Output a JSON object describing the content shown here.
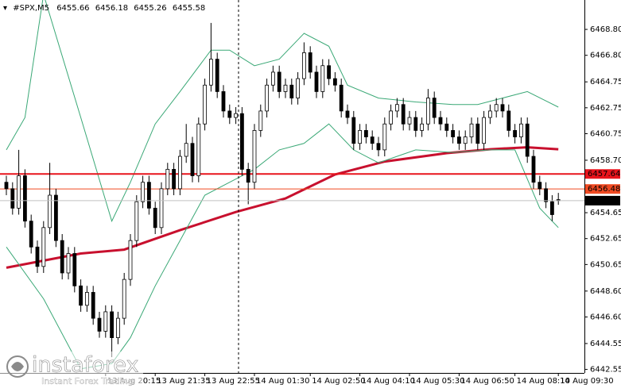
{
  "chart_data": {
    "type": "candlestick",
    "title": "#SPX,M5",
    "categories": [
      null,
      null,
      null,
      null,
      null,
      null,
      null,
      null,
      null,
      null,
      null,
      null,
      null,
      null,
      null,
      null,
      "13 Aug 20:15",
      null,
      null,
      null,
      null,
      null,
      null,
      null,
      "13 Aug 21:35",
      null,
      null,
      null,
      null,
      null,
      null,
      null,
      "13 Aug 22:55",
      null,
      null,
      null,
      null,
      null,
      null,
      null,
      "14 Aug 01:30",
      null,
      null,
      null,
      null,
      null,
      null,
      null,
      null,
      "14 Aug 02:50",
      null,
      null,
      null,
      null,
      null,
      null,
      null,
      "14 Aug 04:10",
      null,
      null,
      null,
      null,
      null,
      null,
      null,
      "14 Aug 05:30",
      null,
      null,
      null,
      null,
      null,
      null,
      null,
      "14 Aug 06:50",
      null,
      null,
      null,
      null,
      null,
      null,
      null,
      null,
      "14 Aug 08:10",
      null,
      null,
      null,
      null,
      null,
      null,
      "14 Aug 09:30"
    ],
    "open": [
      6457.0,
      6456.5,
      6455.0,
      6457.5,
      6454.0,
      6452.0,
      6450.5,
      6453.5,
      6456.0,
      6452.5,
      6450.0,
      6451.5,
      6449.0,
      6447.5,
      6448.5,
      6446.5,
      6445.5,
      6447.0,
      6445.0,
      6446.5,
      6449.5,
      6452.5,
      6455.5,
      6457.0,
      6455.0,
      6453.5,
      6456.5,
      6458.0,
      6456.5,
      6459.0,
      6460.0,
      6457.5,
      6461.5,
      6464.5,
      6466.5,
      6464.0,
      6462.5,
      6462.0,
      6462.3,
      6458.0,
      6457.0,
      6461.0,
      6462.5,
      6464.5,
      6465.5,
      6464.0,
      6464.5,
      6463.5,
      6465.0,
      6467.0,
      6465.5,
      6464.0,
      6466.0,
      6465.0,
      6464.5,
      6462.5,
      6462.0,
      6460.0,
      6461.0,
      6460.5,
      6460.0,
      6459.5,
      6461.5,
      6462.5,
      6463.0,
      6461.5,
      6462.0,
      6461.0,
      6461.5,
      6463.5,
      6462.0,
      6461.5,
      6461.0,
      6460.5,
      6460.0,
      6460.5,
      6461.5,
      6460.0,
      6462.0,
      6462.5,
      6463.0,
      6462.5,
      6461.0,
      6460.5,
      6461.5,
      6459.0,
      6457.0,
      6456.5,
      6455.5,
      6455.66
    ],
    "high": [
      6457.5,
      6457.0,
      6459.5,
      6458.0,
      6454.5,
      6452.5,
      6454.0,
      6458.5,
      6456.5,
      6453.0,
      6452.0,
      6452.0,
      6449.5,
      6449.0,
      6449.0,
      6447.0,
      6447.5,
      6447.5,
      6447.0,
      6450.0,
      6453.0,
      6456.0,
      6457.5,
      6457.5,
      6455.5,
      6457.0,
      6458.5,
      6458.5,
      6459.5,
      6461.5,
      6460.5,
      6462.0,
      6465.0,
      6469.3,
      6467.0,
      6464.5,
      6463.0,
      6462.8,
      6462.8,
      6458.5,
      6461.5,
      6463.0,
      6465.0,
      6466.0,
      6466.0,
      6465.0,
      6465.0,
      6465.5,
      6467.8,
      6467.5,
      6466.0,
      6466.5,
      6466.5,
      6465.5,
      6465.0,
      6463.0,
      6462.5,
      6461.5,
      6461.5,
      6461.0,
      6460.5,
      6462.0,
      6463.0,
      6463.5,
      6463.5,
      6462.5,
      6462.5,
      6462.0,
      6464.2,
      6464.0,
      6462.5,
      6462.0,
      6461.5,
      6461.0,
      6461.0,
      6462.0,
      6462.0,
      6462.5,
      6463.0,
      6463.5,
      6463.5,
      6463.0,
      6461.5,
      6462.0,
      6462.0,
      6459.5,
      6457.5,
      6457.0,
      6456.0,
      6456.18
    ],
    "low": [
      6456.0,
      6454.5,
      6454.5,
      6453.5,
      6451.5,
      6450.0,
      6450.0,
      6453.0,
      6452.0,
      6449.5,
      6449.5,
      6448.5,
      6447.0,
      6447.0,
      6446.0,
      6445.0,
      6445.0,
      6443.5,
      6444.5,
      6446.0,
      6449.0,
      6452.0,
      6455.0,
      6454.5,
      6453.0,
      6453.0,
      6456.0,
      6456.0,
      6456.0,
      6458.5,
      6457.0,
      6457.0,
      6461.0,
      6464.0,
      6463.5,
      6462.0,
      6461.5,
      6461.5,
      6457.5,
      6455.3,
      6456.5,
      6460.5,
      6462.0,
      6464.0,
      6463.5,
      6463.5,
      6463.0,
      6463.0,
      6464.5,
      6465.0,
      6463.5,
      6463.5,
      6464.5,
      6464.0,
      6462.0,
      6461.5,
      6459.5,
      6459.5,
      6460.0,
      6459.5,
      6459.0,
      6459.0,
      6461.0,
      6462.0,
      6461.0,
      6461.0,
      6460.5,
      6460.5,
      6461.0,
      6461.5,
      6461.0,
      6460.5,
      6460.0,
      6459.5,
      6459.5,
      6460.0,
      6459.5,
      6459.5,
      6461.5,
      6462.0,
      6462.0,
      6460.5,
      6460.0,
      6460.0,
      6458.5,
      6456.5,
      6456.0,
      6455.0,
      6454.0,
      6455.26
    ],
    "close": [
      6456.5,
      6455.0,
      6457.5,
      6454.0,
      6452.0,
      6450.5,
      6453.5,
      6456.0,
      6452.5,
      6450.0,
      6451.5,
      6449.0,
      6447.5,
      6448.5,
      6446.5,
      6445.5,
      6447.0,
      6445.0,
      6446.5,
      6449.5,
      6452.5,
      6455.5,
      6457.0,
      6455.0,
      6453.5,
      6456.5,
      6458.0,
      6456.5,
      6459.0,
      6460.0,
      6457.5,
      6461.5,
      6464.5,
      6466.5,
      6464.0,
      6462.5,
      6462.0,
      6462.3,
      6458.0,
      6457.0,
      6461.0,
      6462.5,
      6464.5,
      6465.5,
      6464.0,
      6464.5,
      6463.5,
      6465.0,
      6467.0,
      6465.5,
      6464.0,
      6466.0,
      6465.0,
      6464.5,
      6462.5,
      6462.0,
      6460.0,
      6461.0,
      6460.5,
      6460.0,
      6459.5,
      6461.5,
      6462.5,
      6463.0,
      6461.5,
      6462.0,
      6461.0,
      6461.5,
      6463.5,
      6462.0,
      6461.5,
      6461.0,
      6460.5,
      6460.0,
      6460.5,
      6461.5,
      6460.0,
      6462.0,
      6462.5,
      6463.0,
      6462.5,
      6461.0,
      6460.5,
      6461.5,
      6459.0,
      6457.0,
      6456.5,
      6455.5,
      6454.5,
      6455.58
    ],
    "up_color": "#ffffff",
    "down_color": "#000000",
    "ylim": [
      6442.28,
      6471.07
    ],
    "yticks": [
      {
        "value": 6468.8,
        "label": "6468.80"
      },
      {
        "value": 6466.8,
        "label": "6466.80"
      },
      6464.75,
      6462.75,
      6460.75,
      {
        "value": 6458.7,
        "label": "6458.70"
      },
      6454.65,
      6452.65,
      6450.65,
      {
        "value": 6448.6,
        "label": "6448.60"
      },
      {
        "value": 6446.6,
        "label": "6446.60"
      },
      6444.55,
      6442.55
    ],
    "levels": [
      6457.64,
      6456.48
    ],
    "level_colors": [
      "#e8141c",
      "#f04a22"
    ],
    "lines": [
      {
        "color": "#c8102e",
        "x": [
          0,
          12,
          19,
          28,
          37,
          45,
          53,
          61,
          71,
          78,
          84,
          89
        ],
        "values": [
          6450.4,
          6451.5,
          6451.8,
          6453.3,
          6454.7,
          6455.75,
          6457.6,
          6458.6,
          6459.25,
          6459.55,
          6459.7,
          6459.55
        ]
      },
      {
        "color": "#3aa876",
        "x": [
          0,
          3,
          6,
          12,
          17,
          20,
          24,
          28,
          33,
          36,
          40,
          44,
          48,
          52,
          55,
          60,
          66,
          72,
          76,
          80,
          84,
          89
        ],
        "values": [
          6459.5,
          6462,
          6471.5,
          6462,
          6454,
          6457,
          6461.5,
          6464,
          6467.2,
          6467.2,
          6466,
          6466.5,
          6468.5,
          6467.5,
          6464.5,
          6463.5,
          6463.2,
          6463,
          6463,
          6463.5,
          6464,
          6462.8
        ]
      },
      {
        "color": "#3aa876",
        "x": [
          0,
          6,
          12,
          17,
          20,
          24,
          28,
          32,
          36,
          40,
          44,
          48,
          52,
          56,
          60,
          66,
          72,
          78,
          82,
          86,
          89
        ],
        "values": [
          6452,
          6448,
          6442.6,
          6443,
          6445,
          6449,
          6452.5,
          6456,
          6457,
          6458,
          6459.5,
          6460,
          6461.5,
          6459.5,
          6458.5,
          6459.5,
          6459.3,
          6459.5,
          6459.5,
          6455,
          6453.5
        ]
      }
    ],
    "watermark": {
      "brand": "instaforex",
      "tagline": "Instant Forex Trading"
    }
  }
}
